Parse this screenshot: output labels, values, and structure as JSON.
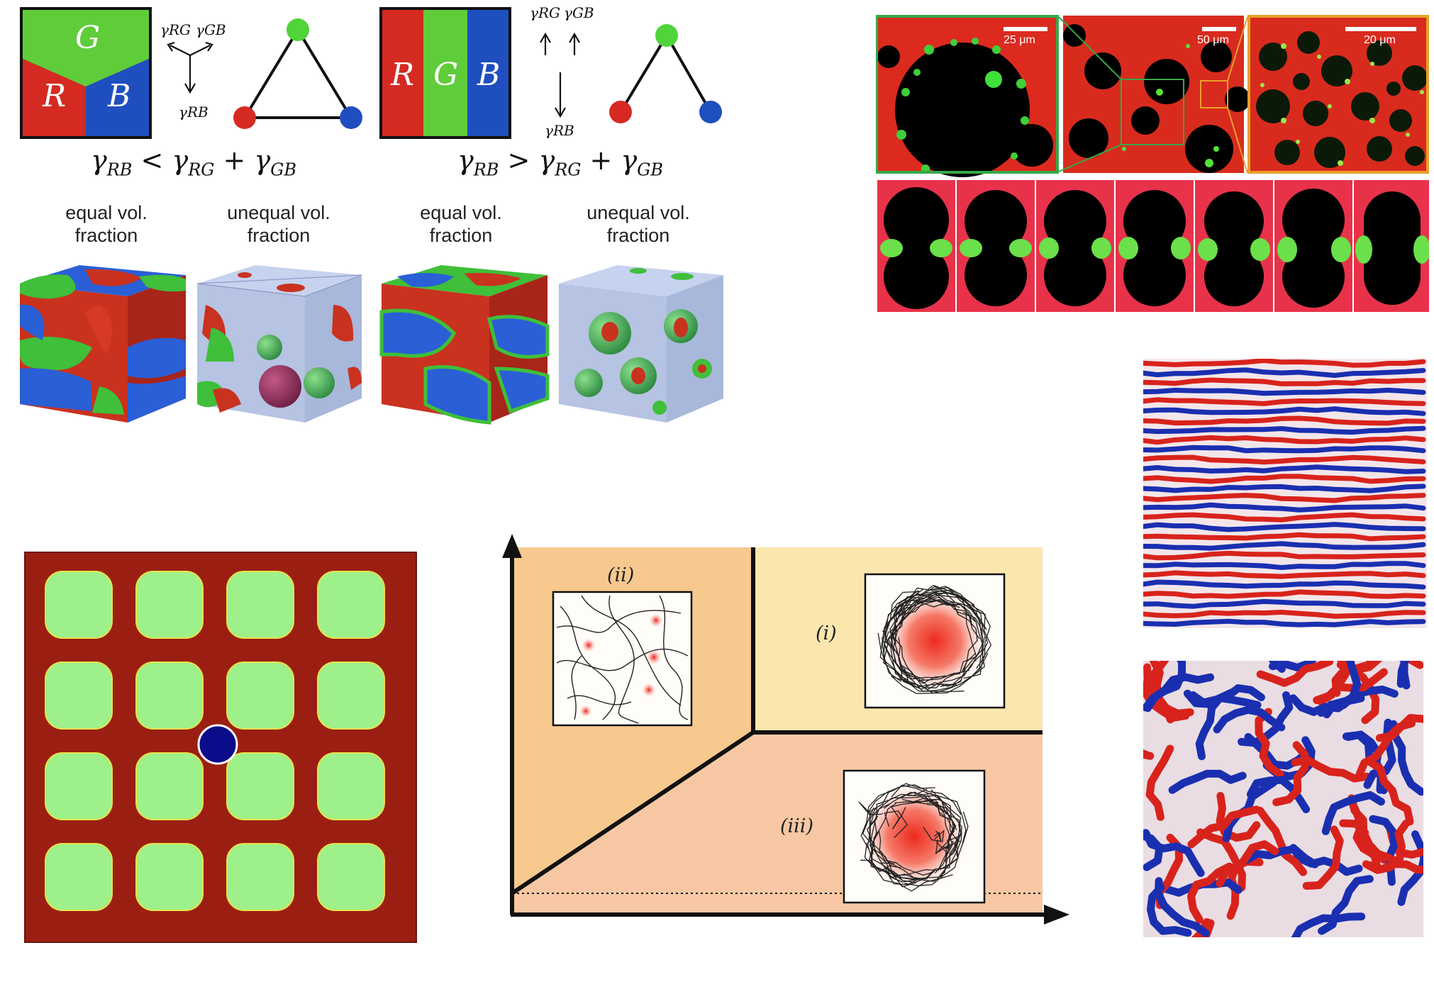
{
  "phase_letters": {
    "r": "R",
    "g": "G",
    "b": "B"
  },
  "tensions": {
    "rg": "γRG",
    "gb": "γGB",
    "rb": "γRB"
  },
  "condition_left": {
    "gamma": "γ",
    "rb": "RB",
    "op": "<",
    "rg": "RG",
    "plus": "+",
    "gb": "GB"
  },
  "condition_right": {
    "gamma": "γ",
    "rb": "RB",
    "op": ">",
    "rg": "RG",
    "plus": "+",
    "gb": "GB"
  },
  "cube_captions": [
    {
      "line1": "equal vol.",
      "line2": "fraction"
    },
    {
      "line1": "unequal vol.",
      "line2": "fraction"
    },
    {
      "line1": "equal vol.",
      "line2": "fraction"
    },
    {
      "line1": "unequal vol.",
      "line2": "fraction"
    }
  ],
  "scale_bars": [
    "25 μm",
    "50 μm",
    "20 μm"
  ],
  "phase_diagram": {
    "region_labels": [
      "(ii)",
      "(i)",
      "(iii)"
    ]
  },
  "colors": {
    "red": "#d42a22",
    "green": "#5fcc3a",
    "blue": "#1f4fbf",
    "dark_red": "#8c1b12",
    "light_green": "#9ef08a"
  }
}
